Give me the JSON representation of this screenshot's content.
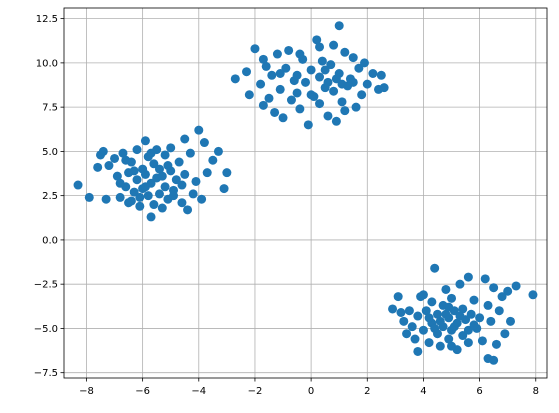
{
  "chart_data": {
    "type": "scatter",
    "title": "",
    "xlabel": "",
    "ylabel": "",
    "xlim": [
      -8.8,
      8.4
    ],
    "ylim": [
      -7.8,
      13.1
    ],
    "xticks": [
      -8,
      -6,
      -4,
      -2,
      0,
      2,
      4,
      6,
      8
    ],
    "yticks": [
      -7.5,
      -5.0,
      -2.5,
      0.0,
      2.5,
      5.0,
      7.5,
      10.0,
      12.5
    ],
    "xtick_labels": [
      "−8",
      "−6",
      "−4",
      "−2",
      "0",
      "2",
      "4",
      "6",
      "8"
    ],
    "ytick_labels": [
      "−7.5",
      "−5.0",
      "−2.5",
      "0.0",
      "2.5",
      "5.0",
      "7.5",
      "10.0",
      "12.5"
    ],
    "grid": true,
    "marker_color": "#1f77b4",
    "series": [
      {
        "points": [
          [
            -8.3,
            3.1
          ],
          [
            -7.9,
            2.4
          ],
          [
            -7.6,
            4.1
          ],
          [
            -7.5,
            4.8
          ],
          [
            -7.4,
            5.0
          ],
          [
            -7.3,
            2.3
          ],
          [
            -7.2,
            4.2
          ],
          [
            -7.0,
            4.6
          ],
          [
            -6.9,
            3.6
          ],
          [
            -6.8,
            2.4
          ],
          [
            -6.7,
            4.9
          ],
          [
            -6.6,
            3.0
          ],
          [
            -6.5,
            2.1
          ],
          [
            -6.5,
            3.8
          ],
          [
            -6.4,
            4.4
          ],
          [
            -6.3,
            2.7
          ],
          [
            -6.2,
            5.1
          ],
          [
            -6.2,
            3.4
          ],
          [
            -6.1,
            1.9
          ],
          [
            -6.0,
            4.0
          ],
          [
            -6.0,
            2.9
          ],
          [
            -5.9,
            5.6
          ],
          [
            -5.9,
            3.7
          ],
          [
            -5.8,
            2.5
          ],
          [
            -5.8,
            4.7
          ],
          [
            -5.7,
            1.3
          ],
          [
            -5.7,
            3.2
          ],
          [
            -5.6,
            4.3
          ],
          [
            -5.6,
            2.0
          ],
          [
            -5.5,
            5.1
          ],
          [
            -5.5,
            3.5
          ],
          [
            -5.4,
            2.6
          ],
          [
            -5.4,
            4.0
          ],
          [
            -5.3,
            1.8
          ],
          [
            -5.2,
            3.0
          ],
          [
            -5.2,
            4.8
          ],
          [
            -5.1,
            2.3
          ],
          [
            -5.0,
            3.9
          ],
          [
            -5.0,
            5.2
          ],
          [
            -4.9,
            2.8
          ],
          [
            -4.8,
            3.4
          ],
          [
            -4.7,
            4.4
          ],
          [
            -4.6,
            2.1
          ],
          [
            -4.5,
            5.7
          ],
          [
            -4.5,
            3.7
          ],
          [
            -4.4,
            1.7
          ],
          [
            -4.3,
            4.9
          ],
          [
            -4.2,
            2.6
          ],
          [
            -4.1,
            3.3
          ],
          [
            -4.0,
            6.2
          ],
          [
            -3.9,
            2.3
          ],
          [
            -3.8,
            5.5
          ],
          [
            -3.7,
            3.8
          ],
          [
            -3.5,
            4.5
          ],
          [
            -3.3,
            5.0
          ],
          [
            -3.1,
            2.9
          ],
          [
            -3.0,
            3.8
          ],
          [
            -6.3,
            3.9
          ],
          [
            -6.6,
            4.5
          ],
          [
            -5.3,
            3.6
          ],
          [
            -5.1,
            4.2
          ],
          [
            -4.9,
            2.5
          ],
          [
            -6.1,
            2.4
          ],
          [
            -5.7,
            4.9
          ],
          [
            -6.8,
            3.2
          ],
          [
            -4.6,
            3.1
          ],
          [
            -5.9,
            3.0
          ],
          [
            -6.4,
            2.2
          ]
        ]
      },
      {
        "points": [
          [
            -2.7,
            9.1
          ],
          [
            -2.3,
            9.5
          ],
          [
            -2.2,
            8.2
          ],
          [
            -2.0,
            10.8
          ],
          [
            -1.8,
            8.8
          ],
          [
            -1.7,
            7.6
          ],
          [
            -1.6,
            9.8
          ],
          [
            -1.5,
            8.0
          ],
          [
            -1.4,
            9.3
          ],
          [
            -1.3,
            7.2
          ],
          [
            -1.2,
            10.5
          ],
          [
            -1.1,
            8.5
          ],
          [
            -1.0,
            6.9
          ],
          [
            -0.9,
            9.7
          ],
          [
            -0.8,
            10.7
          ],
          [
            -0.7,
            7.9
          ],
          [
            -0.6,
            9.0
          ],
          [
            -0.5,
            8.3
          ],
          [
            -0.4,
            7.4
          ],
          [
            -0.3,
            10.2
          ],
          [
            -0.2,
            8.9
          ],
          [
            -0.1,
            6.5
          ],
          [
            0.0,
            9.6
          ],
          [
            0.1,
            8.1
          ],
          [
            0.2,
            11.3
          ],
          [
            0.3,
            7.7
          ],
          [
            0.3,
            9.2
          ],
          [
            0.4,
            10.1
          ],
          [
            0.5,
            8.6
          ],
          [
            0.6,
            7.0
          ],
          [
            0.7,
            9.9
          ],
          [
            0.8,
            11.0
          ],
          [
            0.8,
            8.4
          ],
          [
            0.9,
            6.7
          ],
          [
            1.0,
            12.1
          ],
          [
            1.0,
            9.4
          ],
          [
            1.1,
            7.8
          ],
          [
            1.2,
            10.6
          ],
          [
            1.3,
            8.7
          ],
          [
            1.4,
            9.1
          ],
          [
            1.5,
            10.3
          ],
          [
            1.6,
            7.5
          ],
          [
            1.7,
            9.7
          ],
          [
            1.8,
            8.2
          ],
          [
            1.9,
            10.0
          ],
          [
            2.0,
            8.8
          ],
          [
            2.2,
            9.4
          ],
          [
            2.4,
            8.5
          ],
          [
            2.5,
            9.3
          ],
          [
            2.6,
            8.6
          ],
          [
            -0.5,
            9.3
          ],
          [
            0.5,
            9.6
          ],
          [
            1.1,
            8.8
          ],
          [
            0.0,
            8.2
          ],
          [
            -1.1,
            9.4
          ],
          [
            0.9,
            9.1
          ],
          [
            1.5,
            8.9
          ],
          [
            -0.4,
            10.5
          ],
          [
            0.3,
            10.9
          ],
          [
            1.2,
            7.3
          ],
          [
            -1.7,
            10.2
          ],
          [
            0.6,
            8.9
          ]
        ]
      },
      {
        "points": [
          [
            2.9,
            -3.9
          ],
          [
            3.1,
            -3.2
          ],
          [
            3.2,
            -4.1
          ],
          [
            3.3,
            -4.6
          ],
          [
            3.4,
            -5.3
          ],
          [
            3.6,
            -4.9
          ],
          [
            3.7,
            -5.6
          ],
          [
            3.8,
            -6.3
          ],
          [
            3.8,
            -4.3
          ],
          [
            3.9,
            -3.2
          ],
          [
            4.0,
            -5.1
          ],
          [
            4.1,
            -4.0
          ],
          [
            4.2,
            -5.8
          ],
          [
            4.3,
            -3.5
          ],
          [
            4.3,
            -4.7
          ],
          [
            4.4,
            -1.6
          ],
          [
            4.5,
            -5.3
          ],
          [
            4.5,
            -4.2
          ],
          [
            4.6,
            -6.0
          ],
          [
            4.7,
            -3.7
          ],
          [
            4.7,
            -4.9
          ],
          [
            4.8,
            -2.8
          ],
          [
            4.9,
            -5.6
          ],
          [
            4.9,
            -4.4
          ],
          [
            5.0,
            -3.3
          ],
          [
            5.0,
            -5.1
          ],
          [
            5.1,
            -4.0
          ],
          [
            5.2,
            -6.2
          ],
          [
            5.2,
            -4.7
          ],
          [
            5.3,
            -2.5
          ],
          [
            5.4,
            -5.4
          ],
          [
            5.4,
            -3.9
          ],
          [
            5.5,
            -4.5
          ],
          [
            5.6,
            -2.1
          ],
          [
            5.6,
            -5.8
          ],
          [
            5.7,
            -4.2
          ],
          [
            5.8,
            -3.4
          ],
          [
            5.9,
            -5.0
          ],
          [
            6.0,
            -4.4
          ],
          [
            6.1,
            -5.7
          ],
          [
            6.2,
            -2.2
          ],
          [
            6.3,
            -3.7
          ],
          [
            6.3,
            -6.7
          ],
          [
            6.4,
            -4.6
          ],
          [
            6.5,
            -2.7
          ],
          [
            6.6,
            -5.9
          ],
          [
            6.7,
            -4.0
          ],
          [
            6.8,
            -3.2
          ],
          [
            6.9,
            -5.3
          ],
          [
            7.0,
            -2.9
          ],
          [
            7.1,
            -4.6
          ],
          [
            7.3,
            -2.6
          ],
          [
            7.9,
            -3.1
          ],
          [
            4.8,
            -4.2
          ],
          [
            5.1,
            -4.9
          ],
          [
            4.6,
            -4.6
          ],
          [
            5.3,
            -4.3
          ],
          [
            4.4,
            -5.0
          ],
          [
            5.6,
            -5.1
          ],
          [
            4.9,
            -3.8
          ],
          [
            5.8,
            -4.8
          ],
          [
            4.2,
            -4.4
          ],
          [
            6.5,
            -6.8
          ],
          [
            5.0,
            -6.0
          ],
          [
            3.5,
            -4.0
          ],
          [
            4.0,
            -3.1
          ]
        ]
      }
    ]
  }
}
